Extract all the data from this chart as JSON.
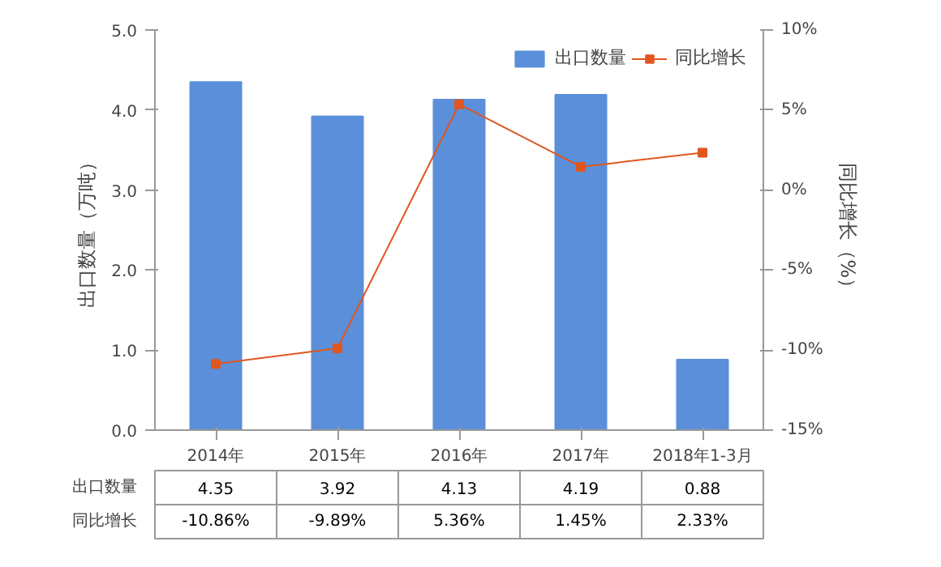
{
  "chart_data": {
    "type": "bar",
    "categories": [
      "2014年",
      "2015年",
      "2016年",
      "2017年",
      "2018年1-3月"
    ],
    "ylabel": "出口数量（万吨）",
    "y2label": "同比增长（%）",
    "ylim": [
      0,
      5
    ],
    "yticks": [
      {
        "value": 0,
        "label": "0.0"
      },
      {
        "value": 1,
        "label": "1.0"
      },
      {
        "value": 2,
        "label": "2.0"
      },
      {
        "value": 3,
        "label": "3.0"
      },
      {
        "value": 4,
        "label": "4.0"
      },
      {
        "value": 5,
        "label": "5.0"
      }
    ],
    "y2lim": [
      -15,
      10
    ],
    "y2ticks": [
      {
        "value": -15,
        "label": "-15%"
      },
      {
        "value": -10,
        "label": "-10%"
      },
      {
        "value": -5,
        "label": "-5%"
      },
      {
        "value": 0,
        "label": "0%"
      },
      {
        "value": 5,
        "label": "5%"
      },
      {
        "value": 10,
        "label": "10%"
      }
    ],
    "series": [
      {
        "name": "出口数量",
        "color": "#5b8fd9",
        "values": [
          4.35,
          3.92,
          4.13,
          4.19,
          0.88
        ],
        "value_labels": [
          "4.35",
          "3.92",
          "4.13",
          "4.19",
          "0.88"
        ]
      },
      {
        "name": "同比增长",
        "type": "line",
        "axis": "y2",
        "color": "#e0561f",
        "marker": "square",
        "values": [
          -10.86,
          -9.89,
          5.36,
          1.45,
          2.33
        ],
        "value_labels": [
          "-10.86%",
          "-9.89%",
          "5.36%",
          "1.45%",
          "2.33%"
        ]
      }
    ],
    "legend": "top right",
    "grid": false
  }
}
